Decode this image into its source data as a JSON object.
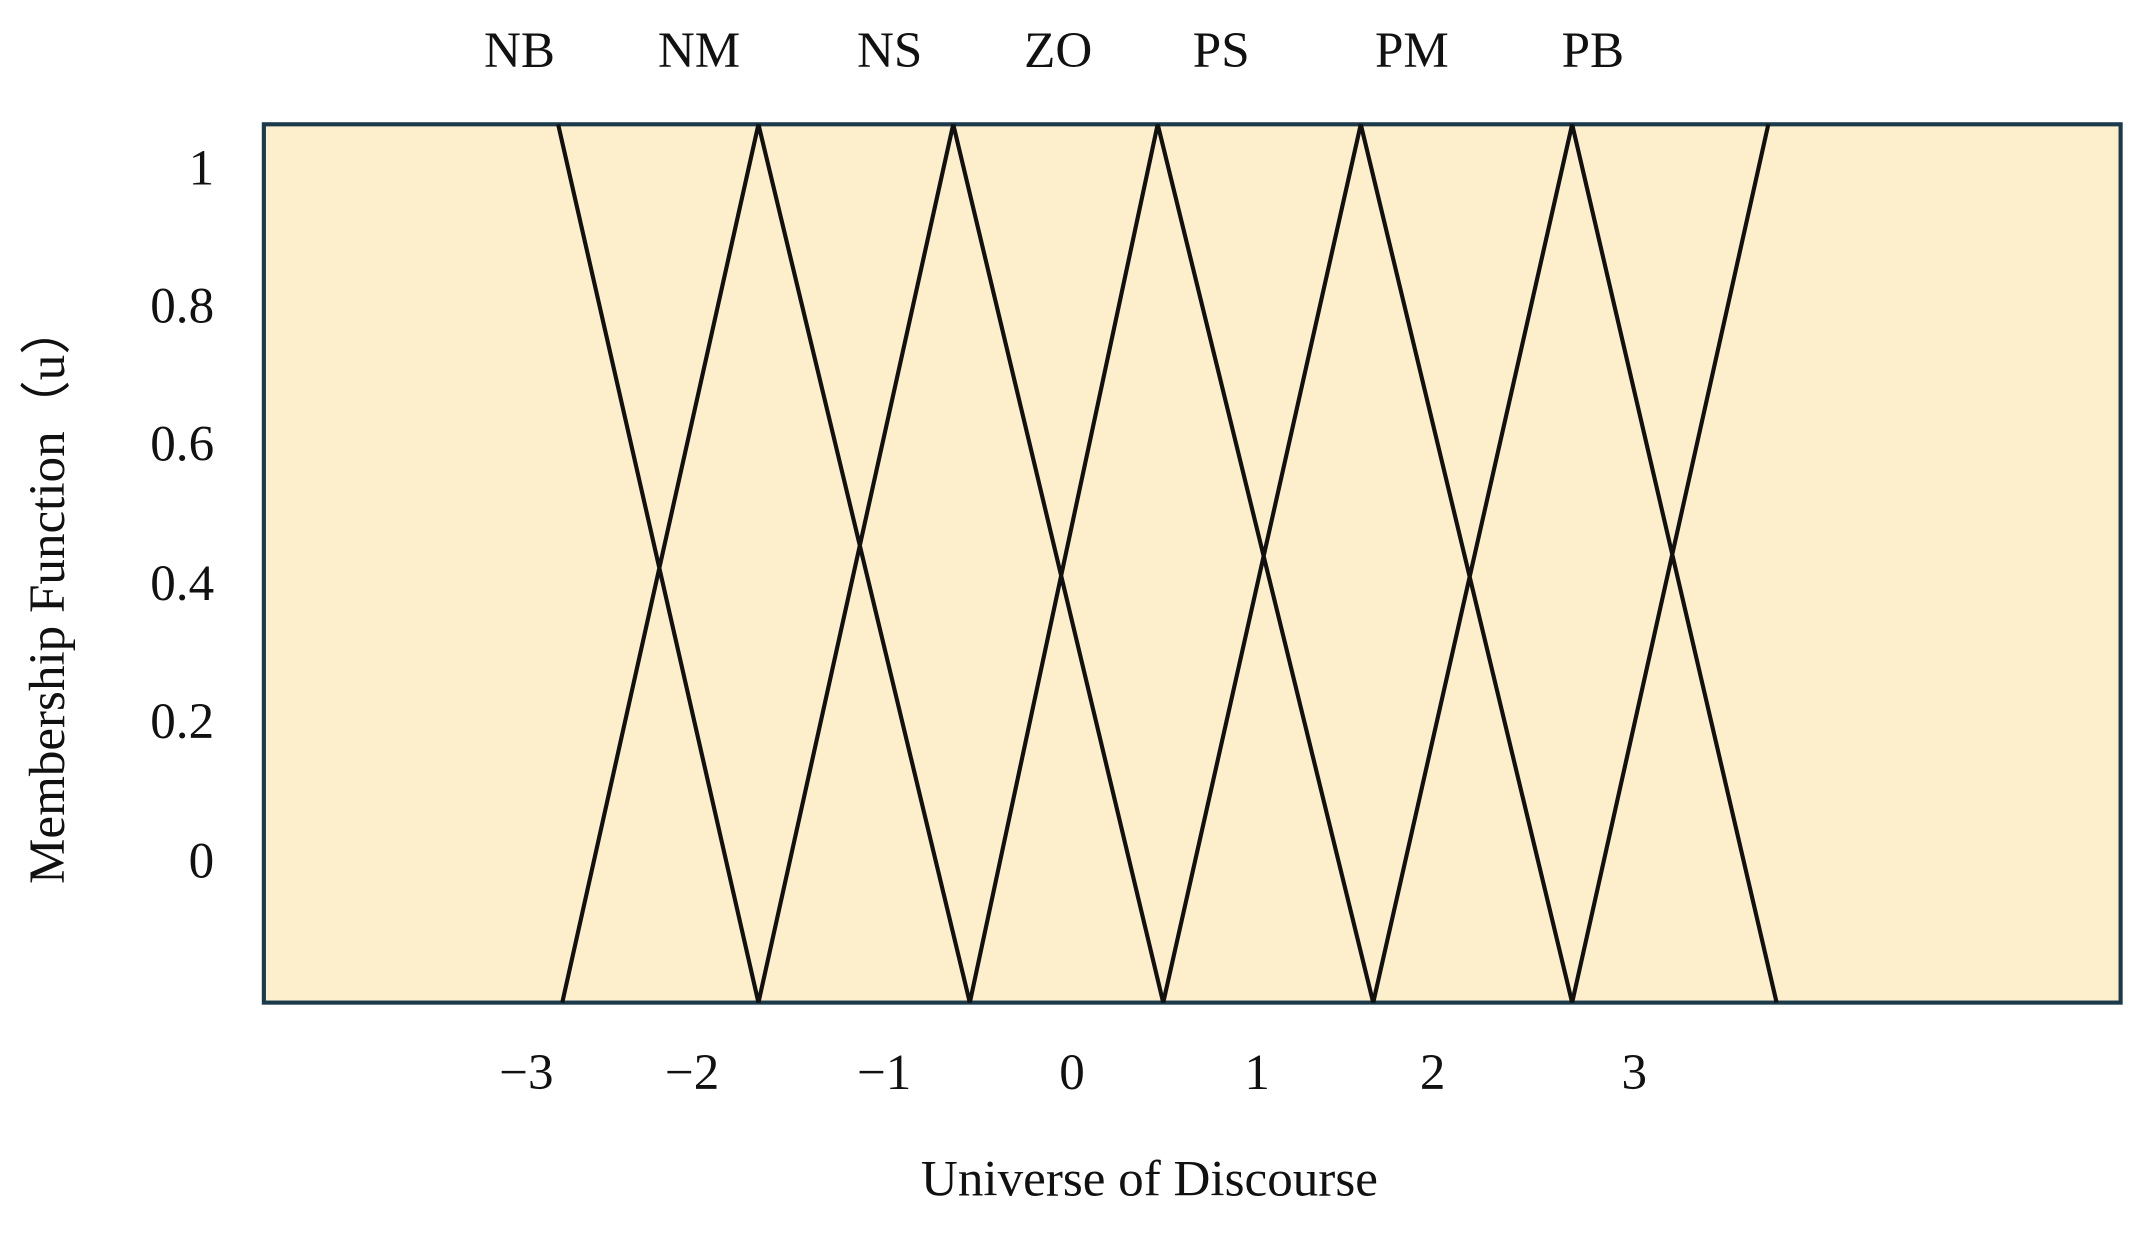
{
  "sets": [
    "NB",
    "NM",
    "NS",
    "ZO",
    "PS",
    "PM",
    "PB"
  ],
  "y_axis": {
    "title": "Membership Function（u）",
    "ticks": [
      "1",
      "0.8",
      "0.6",
      "0.4",
      "0.2",
      "0"
    ]
  },
  "x_axis": {
    "title": "Universe of Discourse",
    "ticks": [
      "−3",
      "−2",
      "−1",
      "0",
      "1",
      "2",
      "3"
    ]
  }
}
